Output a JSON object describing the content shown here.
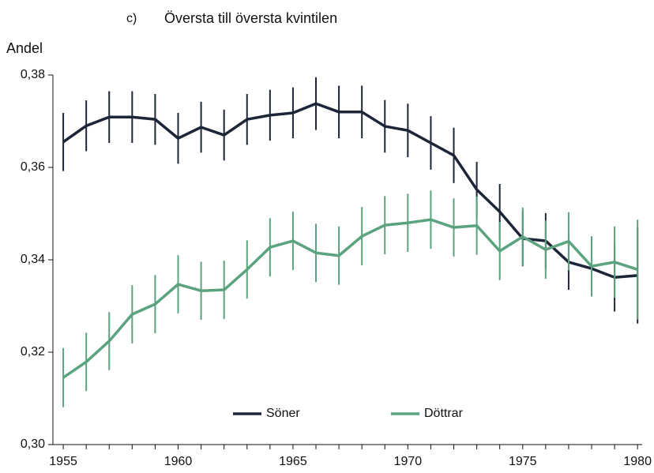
{
  "chart_data": {
    "type": "line",
    "panel": "c)",
    "title": "Översta till översta kvintilen",
    "ylabel": "Andel",
    "x": [
      1955,
      1956,
      1957,
      1958,
      1959,
      1960,
      1961,
      1962,
      1963,
      1964,
      1965,
      1966,
      1967,
      1968,
      1969,
      1970,
      1971,
      1972,
      1973,
      1974,
      1975,
      1976,
      1977,
      1978,
      1979,
      1980
    ],
    "series": [
      {
        "name": "Söner",
        "color": "#1c2638",
        "values": [
          0.3655,
          0.369,
          0.3709,
          0.3709,
          0.3704,
          0.3663,
          0.3687,
          0.367,
          0.3704,
          0.3713,
          0.3718,
          0.3738,
          0.372,
          0.372,
          0.3689,
          0.368,
          0.3653,
          0.3626,
          0.3552,
          0.3504,
          0.3446,
          0.3441,
          0.3395,
          0.3381,
          0.3362,
          0.3366
        ],
        "errors": [
          0.0063,
          0.0055,
          0.0056,
          0.0056,
          0.0055,
          0.0055,
          0.0055,
          0.0055,
          0.0055,
          0.0055,
          0.0055,
          0.0057,
          0.0057,
          0.0057,
          0.0057,
          0.0058,
          0.0058,
          0.006,
          0.006,
          0.006,
          0.006,
          0.006,
          0.006,
          0.006,
          0.0074,
          0.0104
        ]
      },
      {
        "name": "Döttrar",
        "color": "#5aa37e",
        "values": [
          0.3145,
          0.3179,
          0.3224,
          0.3282,
          0.3304,
          0.3347,
          0.3333,
          0.3335,
          0.3379,
          0.3427,
          0.3441,
          0.3415,
          0.3409,
          0.3451,
          0.3475,
          0.348,
          0.3487,
          0.347,
          0.3474,
          0.3419,
          0.345,
          0.3422,
          0.344,
          0.3386,
          0.3395,
          0.3379
        ],
        "errors": [
          0.0064,
          0.0063,
          0.0063,
          0.0063,
          0.0063,
          0.0063,
          0.0063,
          0.0063,
          0.0063,
          0.0063,
          0.0063,
          0.0063,
          0.0063,
          0.0063,
          0.0063,
          0.0063,
          0.0063,
          0.0063,
          0.0063,
          0.0063,
          0.0063,
          0.0063,
          0.0063,
          0.0065,
          0.0077,
          0.0108
        ]
      }
    ],
    "xlim": [
      1954.55,
      1980.2
    ],
    "xticks": [
      1955,
      1960,
      1965,
      1970,
      1975,
      1980
    ],
    "ylim": [
      0.3,
      0.38
    ],
    "yticks": [
      {
        "value": 0.3,
        "label": "0,30"
      },
      {
        "value": 0.32,
        "label": "0,32"
      },
      {
        "value": 0.34,
        "label": "0,34"
      },
      {
        "value": 0.36,
        "label": "0,36"
      },
      {
        "value": 0.38,
        "label": "0,38"
      }
    ],
    "legend": "bottom"
  }
}
